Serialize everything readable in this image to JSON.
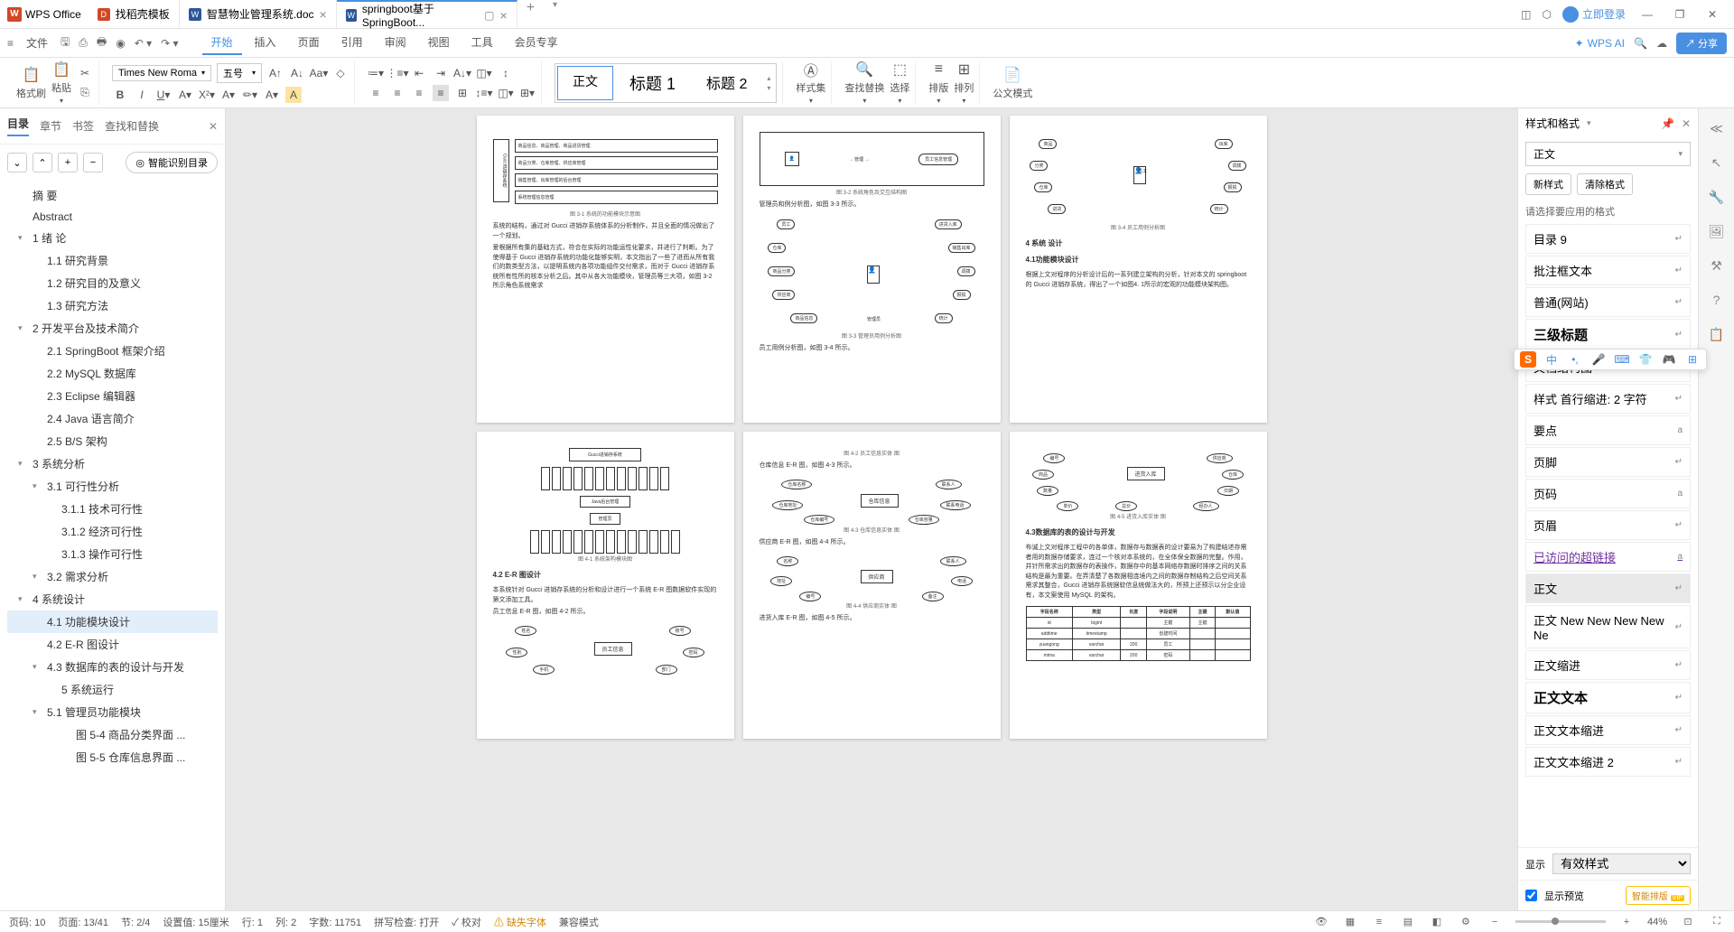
{
  "titlebar": {
    "app_name": "WPS Office",
    "tabs": [
      {
        "icon": "red",
        "label": "找稻壳模板"
      },
      {
        "icon": "blue",
        "label": "智慧物业管理系统.doc"
      },
      {
        "icon": "blue",
        "label": "springboot基于SpringBoot..."
      }
    ],
    "login": "立即登录"
  },
  "menubar": {
    "file": "文件",
    "tabs": [
      "开始",
      "插入",
      "页面",
      "引用",
      "审阅",
      "视图",
      "工具",
      "会员专享"
    ],
    "wps_ai": "WPS AI",
    "share": "分享"
  },
  "ribbon": {
    "format_brush": "格式刷",
    "paste": "粘贴",
    "font_name": "Times New Roma",
    "font_size": "五号",
    "styles": {
      "body": "正文",
      "h1": "标题 1",
      "h2": "标题 2"
    },
    "style_set": "样式集",
    "find_replace": "查找替换",
    "select": "选择",
    "sort": "排版",
    "arrange": "排列",
    "formula": "公文模式"
  },
  "outline": {
    "tabs": {
      "toc": "目录",
      "chapter": "章节",
      "bookmark": "书签",
      "find": "查找和替换"
    },
    "smart": "智能识别目录",
    "items": [
      {
        "level": 1,
        "text": "摘  要"
      },
      {
        "level": 1,
        "text": "Abstract"
      },
      {
        "level": 1,
        "text": "1 绪  论",
        "caret": true
      },
      {
        "level": 2,
        "text": "1.1 研究背景"
      },
      {
        "level": 2,
        "text": "1.2 研究目的及意义"
      },
      {
        "level": 2,
        "text": "1.3 研究方法"
      },
      {
        "level": 1,
        "text": "2 开发平台及技术简介",
        "caret": true
      },
      {
        "level": 2,
        "text": "2.1 SpringBoot 框架介绍"
      },
      {
        "level": 2,
        "text": "2.2 MySQL 数据库"
      },
      {
        "level": 2,
        "text": "2.3 Eclipse  编辑器"
      },
      {
        "level": 2,
        "text": "2.4 Java 语言简介"
      },
      {
        "level": 2,
        "text": "2.5 B/S 架构"
      },
      {
        "level": 1,
        "text": "3 系统分析",
        "caret": true
      },
      {
        "level": 2,
        "text": "3.1 可行性分析",
        "caret": true
      },
      {
        "level": 3,
        "text": "3.1.1 技术可行性"
      },
      {
        "level": 3,
        "text": "3.1.2 经济可行性"
      },
      {
        "level": 3,
        "text": "3.1.3 操作可行性"
      },
      {
        "level": 2,
        "text": "3.2 需求分析",
        "caret": true
      },
      {
        "level": 1,
        "text": "4 系统设计",
        "caret": true
      },
      {
        "level": 2,
        "text": "4.1 功能模块设计",
        "selected": true
      },
      {
        "level": 2,
        "text": "4.2 E-R 图设计"
      },
      {
        "level": 2,
        "text": "4.3 数据库的表的设计与开发",
        "caret": true
      },
      {
        "level": 3,
        "text": "5 系统运行"
      },
      {
        "level": 2,
        "text": "5.1 管理员功能模块",
        "caret": true
      },
      {
        "level": 4,
        "text": "图 5-4 商品分类界面 ..."
      },
      {
        "level": 4,
        "text": "图 5-5 仓库信息界面 ..."
      }
    ]
  },
  "document": {
    "page1": {
      "text1": "系统的结构，通过对 Gucci 进销存系统体系的分析制作，并且全面的情况做出了一个规划。",
      "text2": "爱根据所有集的基础方式，符合在实际的功能运性化要求，并进行了判断。为了使得基于 Gucci 进销存系统的功能化能够实明，本文指出了一些了进而从所有我们的数类型方法，以提明系统内各项功能组件交付需求，而对于 Gucci 进销存系统所有性所的核本分析之后。其中从各大功能模块，管理员等三大项，如图 3-2 所示角色系统需求",
      "caption1": "图 3-1 系统的功能模块示意图"
    },
    "page2": {
      "caption1": "图 3-2 系统角色及交互结构图",
      "text1": "管理员和例分析图，如图 3-3 所示。",
      "caption2": "图 3-3 管理员用例分析图",
      "text2": "员工用例分析图，如图 3-4 所示。"
    },
    "page3": {
      "caption1": "图 3-4 员工用例分析图",
      "h1": "4  系统 设计",
      "h2": "4.1功能模块设计",
      "text1": "根据上文对程序的分析设计后的一系列建立架构的分析，针对本文的 springboot 的 Gucci 进销存系统，得出了一个如图4. 1所示的宏观的功能模块架构图。"
    },
    "page4": {
      "caption1": "图 4-1 系统架构模块图",
      "h1": "4.2 E-R 图设计",
      "text1": "本系统针对 Gucci 进销存系统的分析和设计进行一个系统 E-R 图数据软件实现的第文添加工具。",
      "text2": "员工信息 E-R 图，如图 4-2 所示。"
    },
    "page5": {
      "caption1": "图 4-2 员工信息实体 图",
      "text1": "仓库信息 E-R 图，如图 4-3 所示。",
      "caption2": "图 4-3 仓库信息实体 图",
      "text2": "供应商 E-R 图，如图 4-4 所示。",
      "caption3": "图 4-4 供应商实体 图",
      "text3": "进货入库 E-R 图，如图 4-5 所示。"
    },
    "page6": {
      "caption1": "图 4-5 进货入库实体 图",
      "h1": "4.3数据库的表的设计与开发",
      "text1": "布诚上文对程序工程中的各单体，数据存与数据表的设计要易为了构建结述存需者用的数据存储要求，连过一个核对本系统的，在全体保全数据的完整。作用，并针所需求出的数据存的表操作，数据存中的基本网络存数据时排序之间的关系结构是最为重要。在弄清楚了各数据相连境内之间的数据存制结构之后空间关系需求其整合，Gucci 进销存系统据软信息统做法大的，所预上还预示以分企业设有，本文案使用 MySQL 的架构。",
      "table": {
        "headers": [
          "字段名称",
          "类型",
          "长度",
          "字段说明",
          "主键",
          "默认值"
        ],
        "rows": [
          [
            "id",
            "bigint",
            "",
            "主键",
            "主键",
            ""
          ],
          [
            "addtime",
            "timestamp",
            "",
            "创建时间",
            "",
            ""
          ],
          [
            "yuangong",
            "varchar",
            "200",
            "员工",
            "",
            ""
          ],
          [
            "mima",
            "varchar",
            "200",
            "密码",
            "",
            ""
          ]
        ]
      }
    }
  },
  "style_panel": {
    "title": "样式和格式",
    "current": "正文",
    "new_style": "新样式",
    "clear": "清除格式",
    "hint": "请选择要应用的格式",
    "entries": [
      {
        "label": "目录 9",
        "marker": "↵"
      },
      {
        "label": "批注框文本",
        "marker": "↵"
      },
      {
        "label": "普通(网站)",
        "marker": "↵"
      },
      {
        "label": "三级标题",
        "marker": "↵",
        "bold": true,
        "size": 15
      },
      {
        "label": "文档结构图",
        "marker": "↵"
      },
      {
        "label": "样式 首行缩进:  2 字符",
        "marker": "↵"
      },
      {
        "label": "要点",
        "marker": "a"
      },
      {
        "label": "页脚",
        "marker": "↵"
      },
      {
        "label": "页码",
        "marker": "a"
      },
      {
        "label": "页眉",
        "marker": "↵"
      },
      {
        "label": "已访问的超链接",
        "marker": "a",
        "link": true
      },
      {
        "label": "正文",
        "marker": "↵",
        "selected": true
      },
      {
        "label": "正文 New New New New Ne",
        "marker": "↵"
      },
      {
        "label": "正文缩进",
        "marker": "↵"
      },
      {
        "label": "正文文本",
        "marker": "↵",
        "bold": true,
        "size": 15
      },
      {
        "label": "正文文本缩进",
        "marker": "↵"
      },
      {
        "label": "正文文本缩进 2",
        "marker": "↵"
      }
    ],
    "show": "显示",
    "show_value": "有效样式",
    "preview": "显示预览",
    "smart_layout": "智能排版"
  },
  "statusbar": {
    "page_no": "页码: 10",
    "page": "页面: 13/41",
    "section": "节: 2/4",
    "setval": "设置值: 15厘米",
    "row": "行: 1",
    "col": "列: 2",
    "words": "字数: 11751",
    "spell": "拼写检查: 打开",
    "proof": "校对",
    "missing_font": "缺失字体",
    "compat": "兼容模式",
    "zoom": "44%"
  }
}
